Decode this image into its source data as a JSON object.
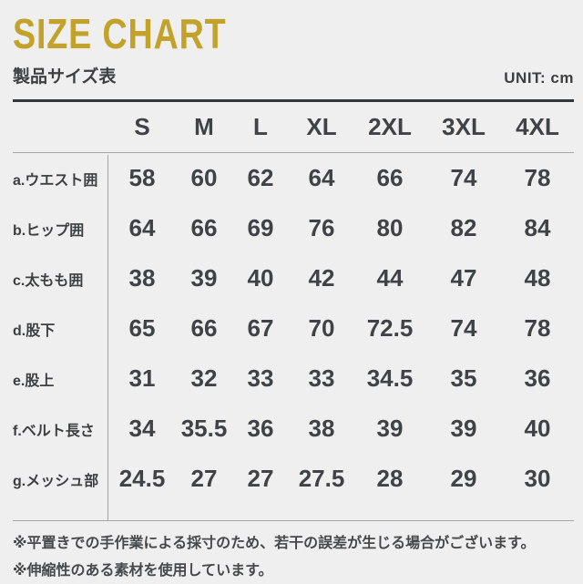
{
  "meta": {
    "background_color": "#efefef",
    "accent_color": "#c2a22b",
    "text_color": "#3d4043",
    "rule_dark_color": "#33363b",
    "rule_gray_color": "#a6a6a6"
  },
  "header": {
    "title": "SIZE CHART",
    "subtitle": "製品サイズ表",
    "unit": "UNIT: cm"
  },
  "table": {
    "size_headers": [
      "S",
      "M",
      "L",
      "XL",
      "2XL",
      "3XL",
      "4XL"
    ],
    "rows": [
      {
        "label": "a.ウエスト囲",
        "values": [
          "58",
          "60",
          "62",
          "64",
          "66",
          "74",
          "78"
        ]
      },
      {
        "label": "b.ヒップ囲",
        "values": [
          "64",
          "66",
          "69",
          "76",
          "80",
          "82",
          "84"
        ]
      },
      {
        "label": "c.太もも囲",
        "values": [
          "38",
          "39",
          "40",
          "42",
          "44",
          "47",
          "48"
        ]
      },
      {
        "label": "d.股下",
        "values": [
          "65",
          "66",
          "67",
          "70",
          "72.5",
          "74",
          "78"
        ]
      },
      {
        "label": "e.股上",
        "values": [
          "31",
          "32",
          "33",
          "33",
          "34.5",
          "35",
          "36"
        ]
      },
      {
        "label": "f.ベルト長さ",
        "values": [
          "34",
          "35.5",
          "36",
          "38",
          "39",
          "39",
          "40"
        ]
      },
      {
        "label": "g.メッシュ部",
        "values": [
          "24.5",
          "27",
          "27",
          "27.5",
          "28",
          "29",
          "30"
        ]
      }
    ]
  },
  "notes": [
    "※平置きでの手作業による採寸のため、若干の誤差が生じる場合がございます。",
    "※伸縮性のある素材を使用しています。"
  ],
  "chart_data": {
    "type": "table",
    "title": "SIZE CHART 製品サイズ表",
    "unit": "cm",
    "columns": [
      "S",
      "M",
      "L",
      "XL",
      "2XL",
      "3XL",
      "4XL"
    ],
    "rows": [
      {
        "name": "a.ウエスト囲",
        "values": [
          58,
          60,
          62,
          64,
          66,
          74,
          78
        ]
      },
      {
        "name": "b.ヒップ囲",
        "values": [
          64,
          66,
          69,
          76,
          80,
          82,
          84
        ]
      },
      {
        "name": "c.太もも囲",
        "values": [
          38,
          39,
          40,
          42,
          44,
          47,
          48
        ]
      },
      {
        "name": "d.股下",
        "values": [
          65,
          66,
          67,
          70,
          72.5,
          74,
          78
        ]
      },
      {
        "name": "e.股上",
        "values": [
          31,
          32,
          33,
          33,
          34.5,
          35,
          36
        ]
      },
      {
        "name": "f.ベルト長さ",
        "values": [
          34,
          35.5,
          36,
          38,
          39,
          39,
          40
        ]
      },
      {
        "name": "g.メッシュ部",
        "values": [
          24.5,
          27,
          27,
          27.5,
          28,
          29,
          30
        ]
      }
    ],
    "notes": [
      "※平置きでの手作業による採寸のため、若干の誤差が生じる場合がございます。",
      "※伸縮性のある素材を使用しています。"
    ]
  }
}
